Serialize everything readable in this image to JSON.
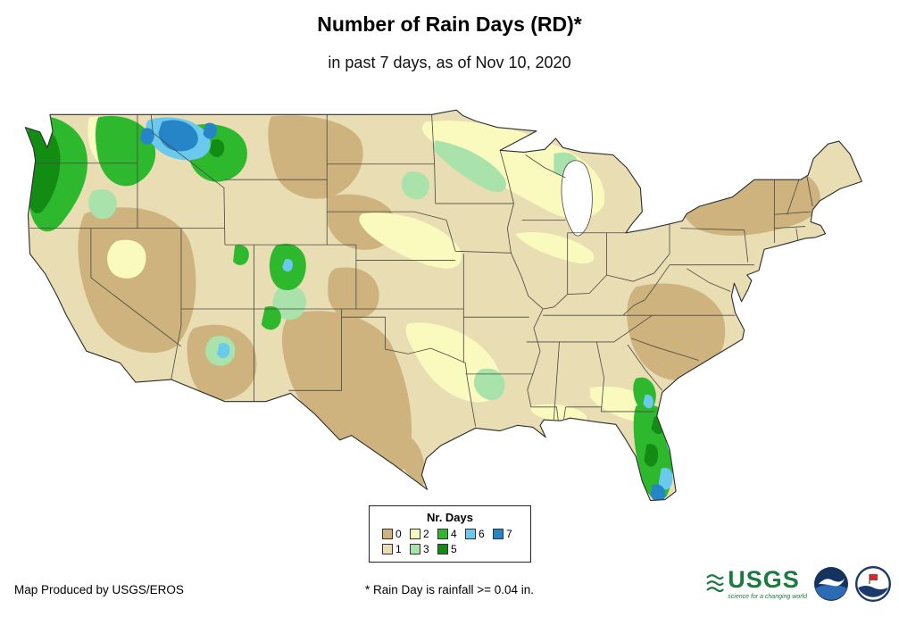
{
  "title": "Number of Rain Days (RD)*",
  "subtitle": "in past 7 days, as of Nov 10, 2020",
  "colors": {
    "c0": "#cfb37f",
    "c1": "#e9ddb4",
    "c2": "#fafabe",
    "c3": "#a9e2aa",
    "c4": "#2eb82e",
    "c5": "#128c12",
    "c6": "#6cc9ee",
    "c7": "#2585c7"
  },
  "legend": {
    "title": "Nr. Days",
    "rows": [
      [
        {
          "label": "0",
          "color_key": "c0"
        },
        {
          "label": "2",
          "color_key": "c2"
        },
        {
          "label": "4",
          "color_key": "c4"
        },
        {
          "label": "6",
          "color_key": "c6"
        },
        {
          "label": "7",
          "color_key": "c7"
        }
      ],
      [
        {
          "label": "1",
          "color_key": "c1"
        },
        {
          "label": "3",
          "color_key": "c3"
        },
        {
          "label": "5",
          "color_key": "c5"
        }
      ]
    ]
  },
  "footer": {
    "credit": "Map Produced by USGS/EROS",
    "note": "* Rain Day is rainfall >= 0.04 in."
  },
  "logos": {
    "usgs_text": "USGS",
    "usgs_tagline": "science for a changing world"
  }
}
